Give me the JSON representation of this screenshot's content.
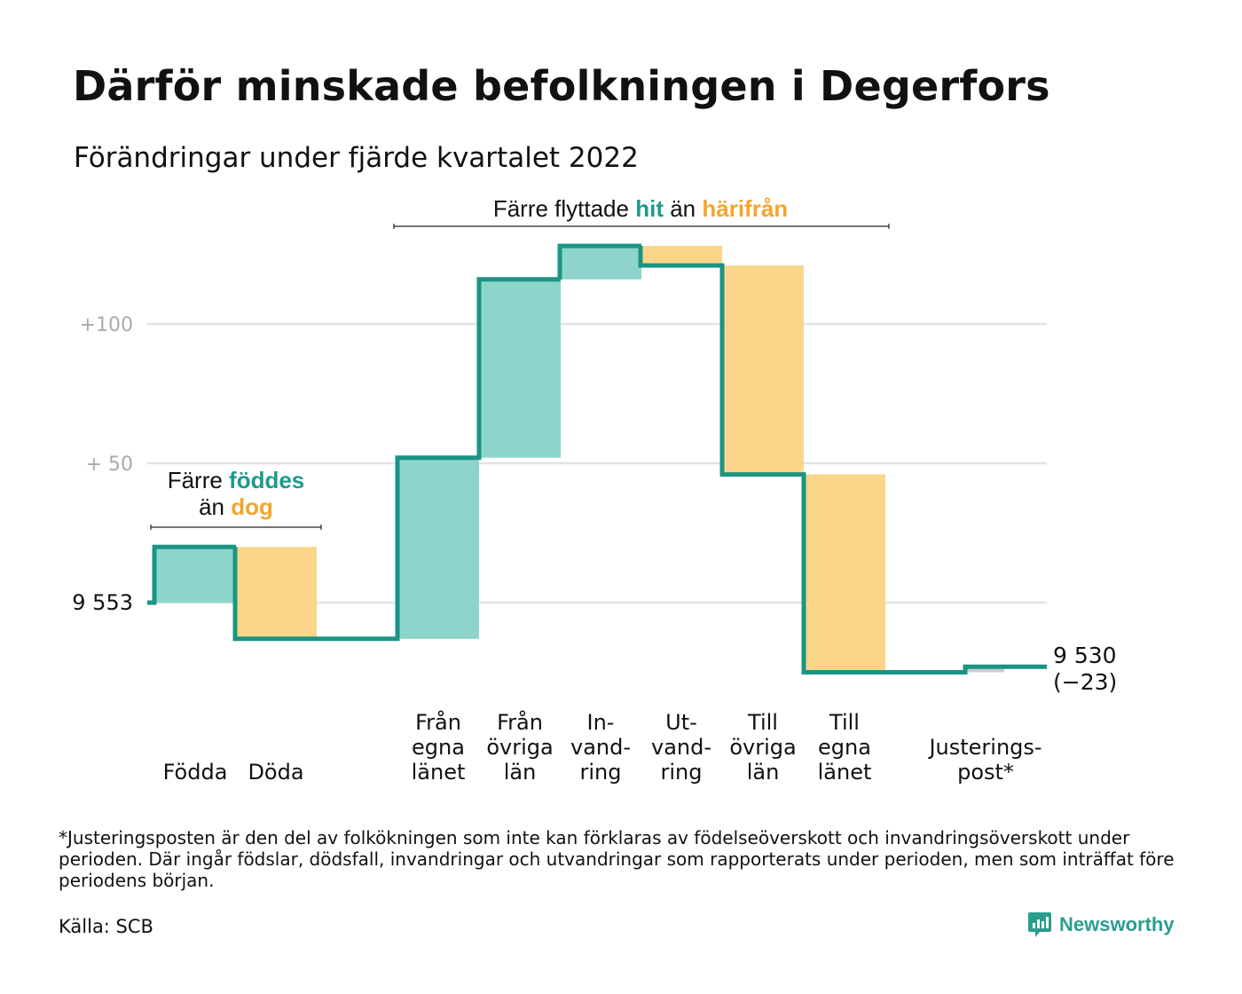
{
  "title": "Därför minskade befolkningen i Degerfors",
  "subtitle": "Förändringar under fjärde kvartalet 2022",
  "chart_data": {
    "type": "waterfall",
    "start_value": 9553,
    "start_label": "9 553",
    "end_value": 9530,
    "end_label": [
      "9 530",
      "(−23)"
    ],
    "y_ticks": [
      {
        "value": 50,
        "label": "+ 50"
      },
      {
        "value": 100,
        "label": "+100"
      }
    ],
    "steps": [
      {
        "key": "fodda",
        "label": [
          "Födda"
        ],
        "change": 20,
        "type": "in"
      },
      {
        "key": "doda",
        "label": [
          "Döda"
        ],
        "change": -33,
        "type": "out"
      },
      {
        "key": "fran-egna-lanet",
        "label": [
          "Från",
          "egna",
          "länet"
        ],
        "change": 65,
        "type": "in"
      },
      {
        "key": "fran-ovriga-lan",
        "label": [
          "Från",
          "övriga",
          "län"
        ],
        "change": 64,
        "type": "in"
      },
      {
        "key": "invandring",
        "label": [
          "In-",
          "vand-",
          "ring"
        ],
        "change": 12,
        "type": "in"
      },
      {
        "key": "utvandring",
        "label": [
          "Ut-",
          "vand-",
          "ring"
        ],
        "change": -7,
        "type": "out"
      },
      {
        "key": "till-ovriga-lan",
        "label": [
          "Till",
          "övriga",
          "län"
        ],
        "change": -75,
        "type": "out"
      },
      {
        "key": "till-egna-lanet",
        "label": [
          "Till",
          "egna",
          "länet"
        ],
        "change": -71,
        "type": "out"
      },
      {
        "key": "justeringspost",
        "label": [
          "Justerings-",
          "post*"
        ],
        "change": 2,
        "type": "adjust"
      }
    ],
    "annotations": {
      "births": {
        "prefix": "Färre ",
        "in_word": "föddes",
        "middle": "än ",
        "out_word": "dog"
      },
      "migration": {
        "prefix": "Färre flyttade ",
        "in_word": "hit",
        "middle": " än ",
        "out_word": "härifrån"
      }
    },
    "colors": {
      "line": "#1a9484",
      "in_fill": "#8dd5ca",
      "out_fill": "#fad58a",
      "adjust_fill": "#cccccc",
      "in_text": "#1f9a8a",
      "out_text": "#f2a62e",
      "grid": "#e3e3e3",
      "tick_text": "#aaaaaa"
    }
  },
  "footnote": "*Justeringsposten är den del av folkökningen som inte kan förklaras av födelseöverskott och invandringsöverskott under perioden. Där ingår födslar, dödsfall, invandringar och utvandringar som rapporterats under perioden, men som inträffat före periodens början.",
  "source": "Källa: SCB",
  "brand": {
    "name": "Newsworthy",
    "icon": "newsworthy-logo-icon"
  }
}
